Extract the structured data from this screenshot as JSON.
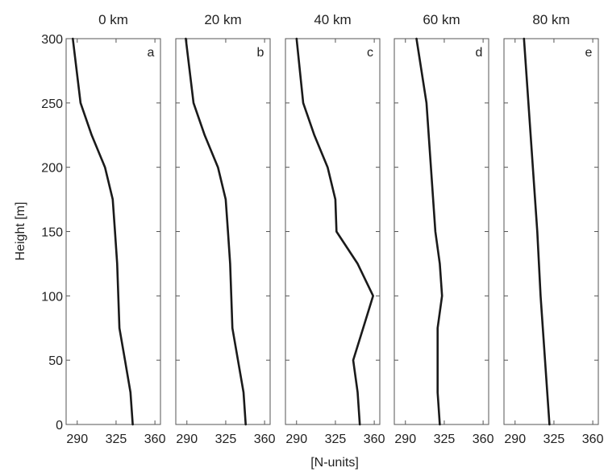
{
  "chart_data": {
    "type": "line",
    "ylabel": "Height [m]",
    "xlabel": "[N-units]",
    "ylim": [
      0,
      300
    ],
    "xlim": [
      280,
      365
    ],
    "yticks": [
      0,
      50,
      100,
      150,
      200,
      250,
      300
    ],
    "xticks": [
      290,
      325,
      360
    ],
    "panels": [
      {
        "title": "0 km",
        "letter": "a",
        "points": [
          [
            286,
            300
          ],
          [
            293,
            250
          ],
          [
            303,
            225
          ],
          [
            315,
            200
          ],
          [
            322,
            175
          ],
          [
            324,
            150
          ],
          [
            326,
            125
          ],
          [
            327,
            100
          ],
          [
            328,
            75
          ],
          [
            333,
            50
          ],
          [
            338,
            25
          ],
          [
            340,
            0
          ]
        ]
      },
      {
        "title": "20 km",
        "letter": "b",
        "points": [
          [
            289,
            300
          ],
          [
            296,
            250
          ],
          [
            306,
            225
          ],
          [
            318,
            200
          ],
          [
            325,
            175
          ],
          [
            327,
            150
          ],
          [
            329,
            125
          ],
          [
            330,
            100
          ],
          [
            331,
            75
          ],
          [
            336,
            50
          ],
          [
            341,
            25
          ],
          [
            343,
            0
          ]
        ]
      },
      {
        "title": "40 km",
        "letter": "c",
        "points": [
          [
            290,
            300
          ],
          [
            296,
            250
          ],
          [
            306,
            225
          ],
          [
            318,
            200
          ],
          [
            325,
            175
          ],
          [
            326,
            150
          ],
          [
            345,
            125
          ],
          [
            359,
            100
          ],
          [
            350,
            75
          ],
          [
            341,
            50
          ],
          [
            345,
            25
          ],
          [
            347,
            0
          ]
        ]
      },
      {
        "title": "60 km",
        "letter": "d",
        "points": [
          [
            300,
            300
          ],
          [
            309,
            250
          ],
          [
            313,
            200
          ],
          [
            317,
            150
          ],
          [
            321,
            125
          ],
          [
            323,
            100
          ],
          [
            319,
            75
          ],
          [
            319,
            50
          ],
          [
            319,
            25
          ],
          [
            321,
            0
          ]
        ]
      },
      {
        "title": "80 km",
        "letter": "e",
        "points": [
          [
            298,
            300
          ],
          [
            302,
            250
          ],
          [
            306,
            200
          ],
          [
            310,
            150
          ],
          [
            313,
            100
          ],
          [
            317,
            50
          ],
          [
            321,
            0
          ]
        ]
      }
    ]
  }
}
